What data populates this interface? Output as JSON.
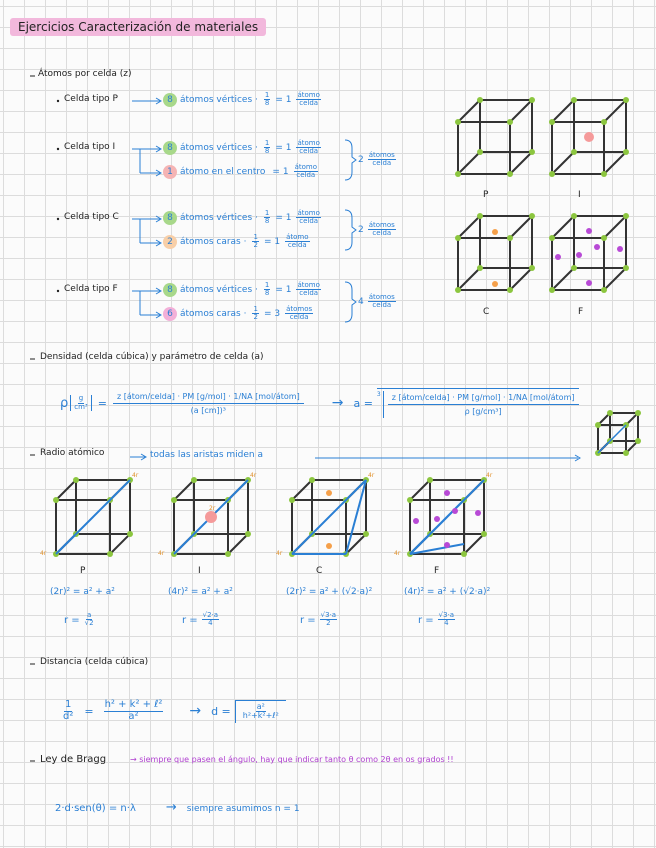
{
  "title": "Ejercicios Caracterización de materiales",
  "atoms_per_cell": {
    "heading": "Átomos por celda (z)",
    "cells": [
      {
        "label": "Celda tipo P",
        "lines": [
          {
            "n": "8",
            "text": "átomos vértices ·",
            "frac": [
              "1",
              "8"
            ],
            "result": "= 1",
            "unit": [
              "átomo",
              "celda"
            ]
          }
        ]
      },
      {
        "label": "Celda tipo I",
        "lines": [
          {
            "n": "8",
            "text": "átomos vértices ·",
            "frac": [
              "1",
              "8"
            ],
            "result": "= 1",
            "unit": [
              "átomo",
              "celda"
            ]
          },
          {
            "n": "1",
            "text": "átomo en el centro",
            "result": "= 1",
            "unit": [
              "átomo",
              "celda"
            ]
          }
        ],
        "total": "2",
        "total_unit": [
          "átomos",
          "celda"
        ]
      },
      {
        "label": "Celda tipo C",
        "lines": [
          {
            "n": "8",
            "text": "átomos vértices ·",
            "frac": [
              "1",
              "8"
            ],
            "result": "= 1",
            "unit": [
              "átomo",
              "celda"
            ]
          },
          {
            "n": "2",
            "text": "átomos caras ·",
            "frac": [
              "1",
              "2"
            ],
            "result": "= 1",
            "unit": [
              "átomo",
              "celda"
            ]
          }
        ],
        "total": "2",
        "total_unit": [
          "átomos",
          "celda"
        ]
      },
      {
        "label": "Celda tipo F",
        "lines": [
          {
            "n": "8",
            "text": "átomos vértices ·",
            "frac": [
              "1",
              "8"
            ],
            "result": "= 1",
            "unit": [
              "átomo",
              "celda"
            ]
          },
          {
            "n": "6",
            "text": "átomos caras ·",
            "frac": [
              "1",
              "2"
            ],
            "result": "= 3",
            "unit": [
              "átomos",
              "celda"
            ]
          }
        ],
        "total": "4",
        "total_unit": [
          "átomos",
          "celda"
        ]
      }
    ],
    "cube_labels": [
      "P",
      "I",
      "C",
      "F"
    ]
  },
  "density": {
    "heading": "Densidad (celda cúbica) y parámetro de celda (a)",
    "lhs": "ρ",
    "lhs_unit": [
      "g",
      "cm³"
    ],
    "eq": "=",
    "numerator": "z [átom/celda] · PM [g/mol] · 1/NA [mol/átom]",
    "denominator": "(a [cm])³",
    "arrow": "→",
    "result": "a =",
    "root_index": "3",
    "root_numerator": "z [átom/celda] · PM [g/mol] · 1/NA [mol/átom]",
    "root_denominator": "ρ [g/cm³]"
  },
  "radius": {
    "heading": "Radio atómico",
    "note": "todas las aristas miden a",
    "cells": [
      {
        "label": "P",
        "marks": [
          "4r",
          "4r"
        ],
        "equation": "(2r)² = a² + a²",
        "r": "r =",
        "r_frac": [
          "a",
          "√2"
        ]
      },
      {
        "label": "I",
        "marks": [
          "4r",
          "2r",
          "4r"
        ],
        "equation": "(4r)² = a² + a²",
        "r": "r =",
        "r_frac": [
          "√2·a",
          "4"
        ]
      },
      {
        "label": "C",
        "marks": [
          "4r",
          "4r"
        ],
        "equation": "(2r)² = a² + (√2·a)²",
        "r": "r =",
        "r_frac": [
          "√3·a",
          "2"
        ]
      },
      {
        "label": "F",
        "marks": [
          "4r",
          "4r"
        ],
        "equation": "(4r)² = a² + (√2·a)²",
        "r": "r =",
        "r_frac": [
          "√3·a",
          "4"
        ]
      }
    ]
  },
  "distance": {
    "heading": "Distancia (celda cúbica)",
    "lhs": [
      "1",
      "d²"
    ],
    "eq": "=",
    "rhs": [
      "h² + k² + ℓ²",
      "a²"
    ],
    "arrow": "→",
    "result": "d =",
    "root": [
      "a²",
      "h²+k²+ℓ²"
    ]
  },
  "bragg": {
    "heading": "Ley de Bragg",
    "note": "→ siempre que pasen el ángulo, hay que indicar tanto θ como 2θ en os grados !!",
    "equation": "2·d·sen(θ) = n·λ",
    "arrow": "→",
    "assumption": "siempre asumimos  n = 1"
  }
}
